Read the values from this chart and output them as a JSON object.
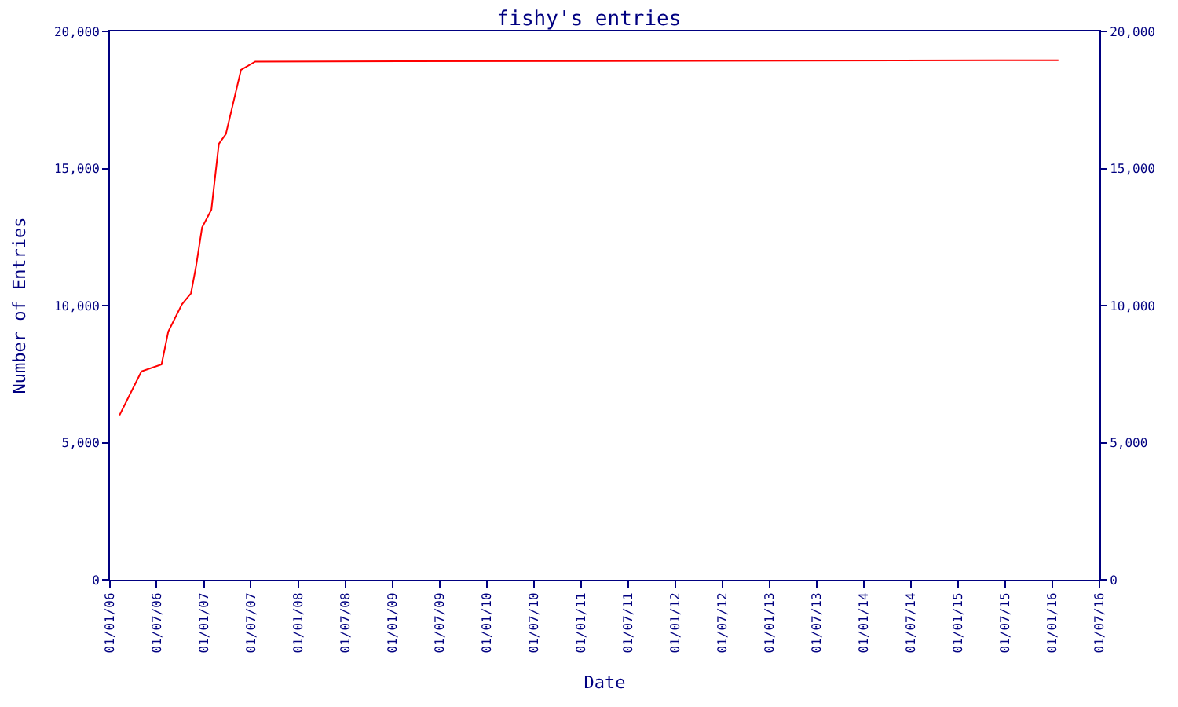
{
  "chart_data": {
    "type": "line",
    "title": "fishy's entries",
    "xlabel": "Date",
    "ylabel": "Number of Entries",
    "x": [
      "2006-02-07",
      "2006-05-03",
      "2006-07-20",
      "2006-08-15",
      "2006-10-07",
      "2006-11-11",
      "2006-12-01",
      "2006-12-24",
      "2007-01-29",
      "2007-02-27",
      "2007-03-26",
      "2007-05-24",
      "2007-07-18",
      "2016-01-24"
    ],
    "series": [
      {
        "color": "#ff0000",
        "values": [
          6000,
          7600,
          7850,
          9050,
          10050,
          10450,
          11450,
          12850,
          13500,
          15900,
          16250,
          18600,
          18900,
          18950
        ]
      }
    ],
    "xlim": [
      "2006-01-01",
      "2016-07-01"
    ],
    "xticks": [
      {
        "value": "2006-01-01",
        "label": "01/01/06"
      },
      {
        "value": "2006-07-01",
        "label": "01/07/06"
      },
      {
        "value": "2007-01-01",
        "label": "01/01/07"
      },
      {
        "value": "2007-07-01",
        "label": "01/07/07"
      },
      {
        "value": "2008-01-01",
        "label": "01/01/08"
      },
      {
        "value": "2008-07-01",
        "label": "01/07/08"
      },
      {
        "value": "2009-01-01",
        "label": "01/01/09"
      },
      {
        "value": "2009-07-01",
        "label": "01/07/09"
      },
      {
        "value": "2010-01-01",
        "label": "01/01/10"
      },
      {
        "value": "2010-07-01",
        "label": "01/07/10"
      },
      {
        "value": "2011-01-01",
        "label": "01/01/11"
      },
      {
        "value": "2011-07-01",
        "label": "01/07/11"
      },
      {
        "value": "2012-01-01",
        "label": "01/01/12"
      },
      {
        "value": "2012-07-01",
        "label": "01/07/12"
      },
      {
        "value": "2013-01-01",
        "label": "01/01/13"
      },
      {
        "value": "2013-07-01",
        "label": "01/07/13"
      },
      {
        "value": "2014-01-01",
        "label": "01/01/14"
      },
      {
        "value": "2014-07-01",
        "label": "01/07/14"
      },
      {
        "value": "2015-01-01",
        "label": "01/01/15"
      },
      {
        "value": "2015-07-01",
        "label": "01/07/15"
      },
      {
        "value": "2016-01-01",
        "label": "01/01/16"
      },
      {
        "value": "2016-07-01",
        "label": "01/07/16"
      }
    ],
    "ylim": [
      0,
      20000
    ],
    "yticks": [
      0,
      {
        "value": 5000,
        "label": "5,000"
      },
      {
        "value": 10000,
        "label": "10,000"
      },
      {
        "value": 15000,
        "label": "15,000"
      },
      {
        "value": 20000,
        "label": "20,000"
      }
    ],
    "y2lim": [
      0,
      20000
    ],
    "y2ticks": [
      0,
      {
        "value": 5000,
        "label": "5,000"
      },
      {
        "value": 10000,
        "label": "10,000"
      },
      {
        "value": 15000,
        "label": "15,000"
      },
      {
        "value": 20000,
        "label": "20,000"
      }
    ],
    "marker": "none",
    "line_style": "solid"
  }
}
